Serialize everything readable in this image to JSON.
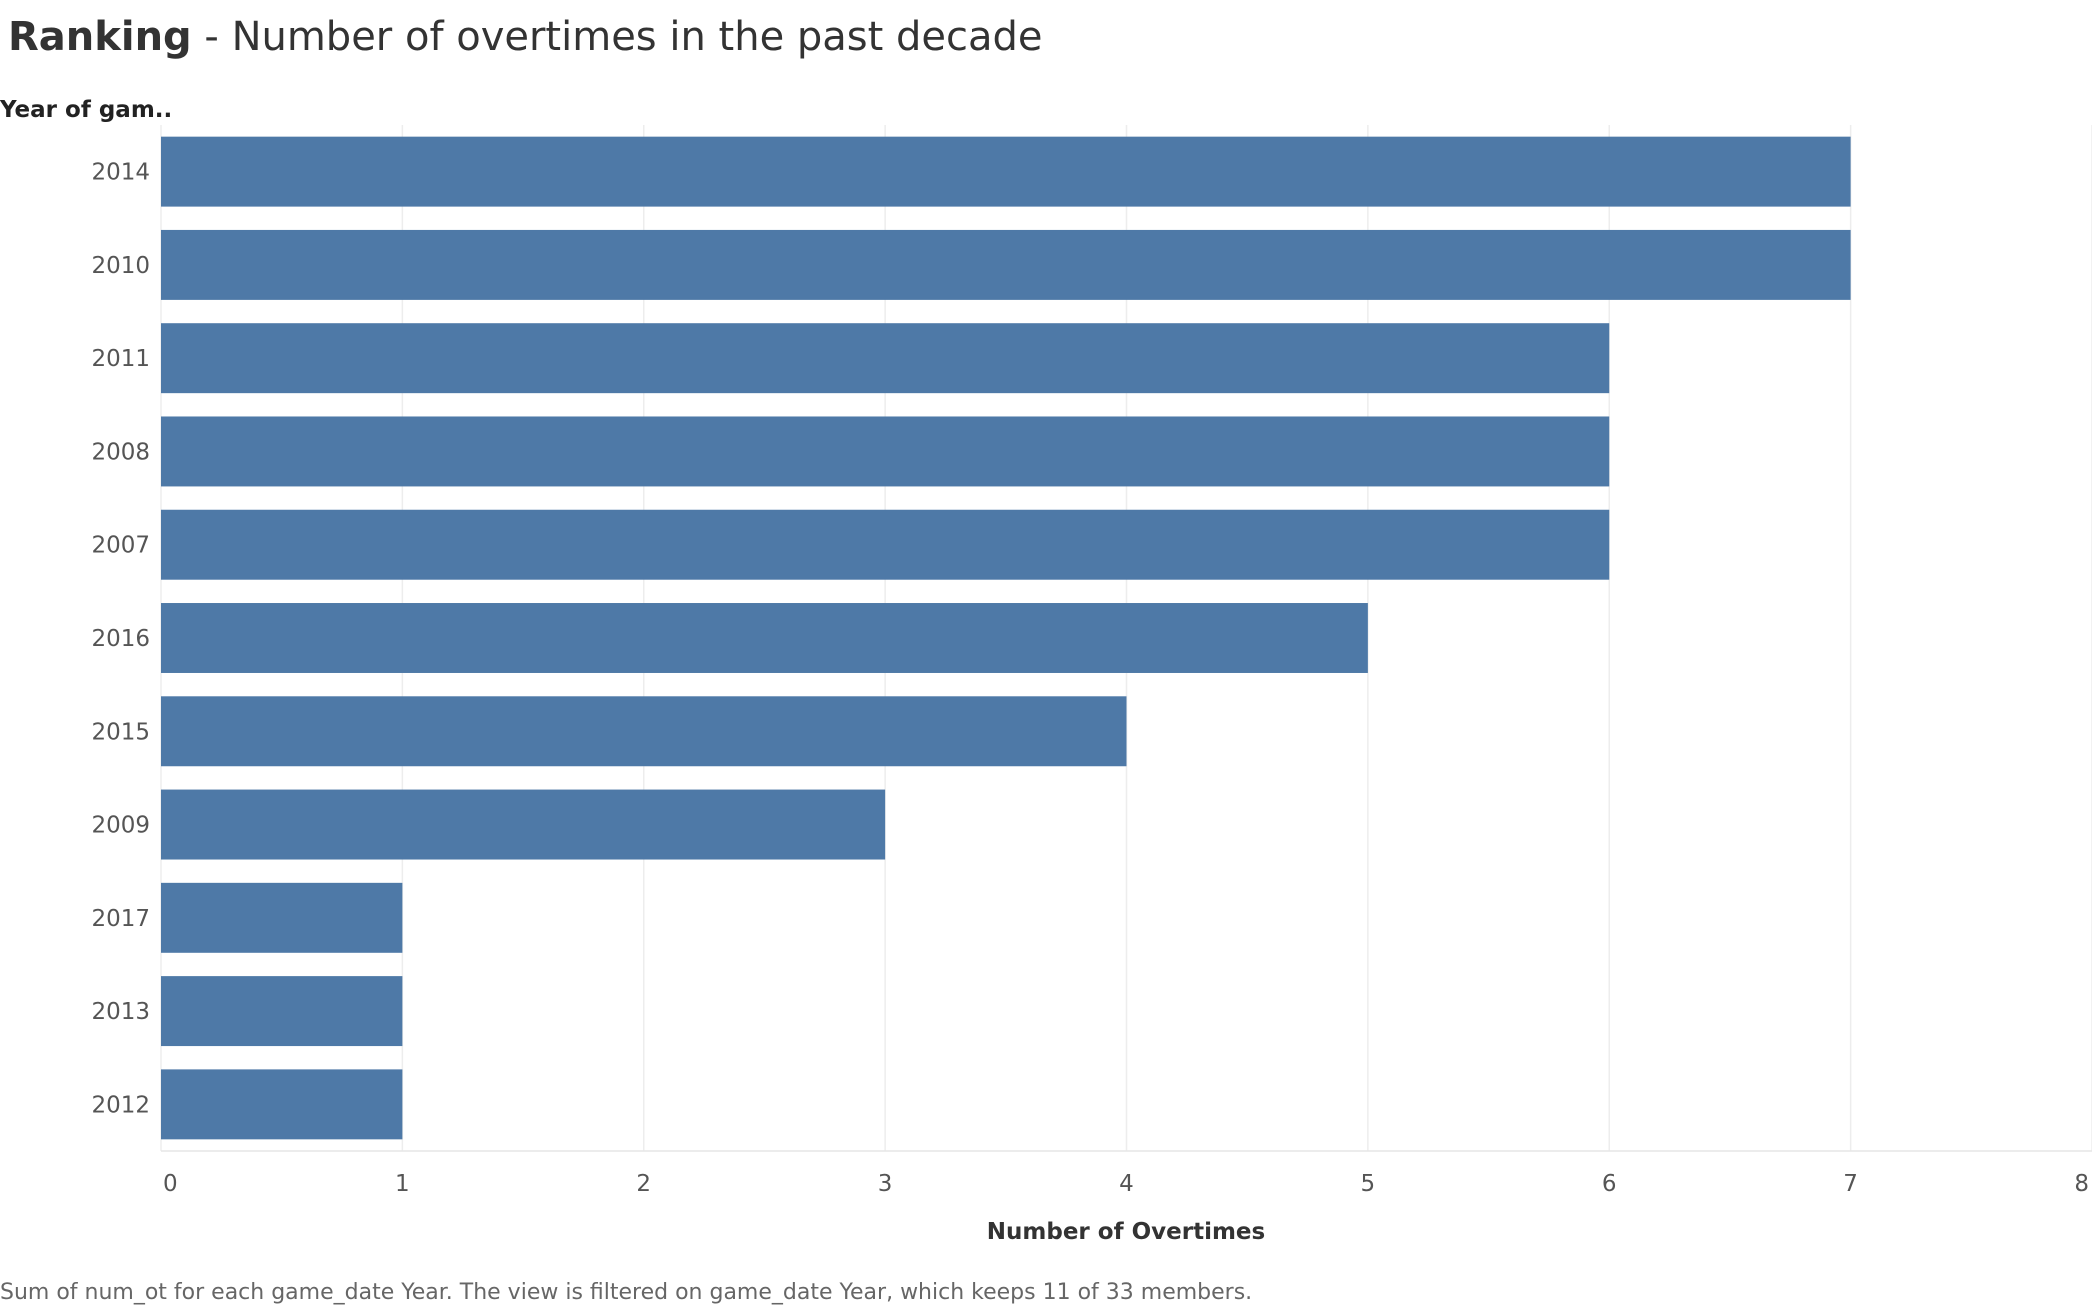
{
  "title": {
    "bold": "Ranking",
    "rest": " - Number of overtimes in the past decade"
  },
  "caption": "Sum of num_ot for each game_date Year. The view is filtered on game_date Year, which keeps 11 of 33 members.",
  "chart_data": {
    "type": "bar",
    "orientation": "horizontal",
    "ylabel": "Year of gam..",
    "xlabel": "Number of Overtimes",
    "categories": [
      "2014",
      "2010",
      "2011",
      "2008",
      "2007",
      "2016",
      "2015",
      "2009",
      "2017",
      "2013",
      "2012"
    ],
    "values": [
      7,
      7,
      6,
      6,
      6,
      5,
      4,
      3,
      1,
      1,
      1
    ],
    "xlim": [
      0,
      8
    ],
    "xticks": [
      0,
      1,
      2,
      3,
      4,
      5,
      6,
      7,
      8
    ],
    "grid": true,
    "bar_color": "#4e79a7"
  }
}
